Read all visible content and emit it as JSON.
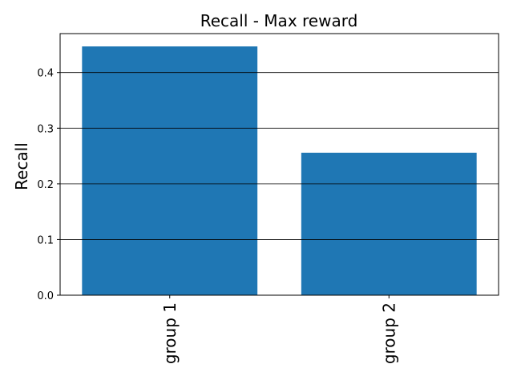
{
  "chart_data": {
    "type": "bar",
    "title": "Recall - Max reward",
    "xlabel": "",
    "ylabel": "Recall",
    "categories": [
      "group 1",
      "group 2"
    ],
    "values": [
      0.447,
      0.256
    ],
    "ylim": [
      0,
      0.47
    ],
    "yticks": [
      0.0,
      0.1,
      0.2,
      0.3,
      0.4
    ],
    "ytick_labels": [
      "0.0",
      "0.1",
      "0.2",
      "0.3",
      "0.4"
    ],
    "grid": "y-major",
    "bar_color": "#1f77b4",
    "xtick_rotation": "vertical"
  }
}
